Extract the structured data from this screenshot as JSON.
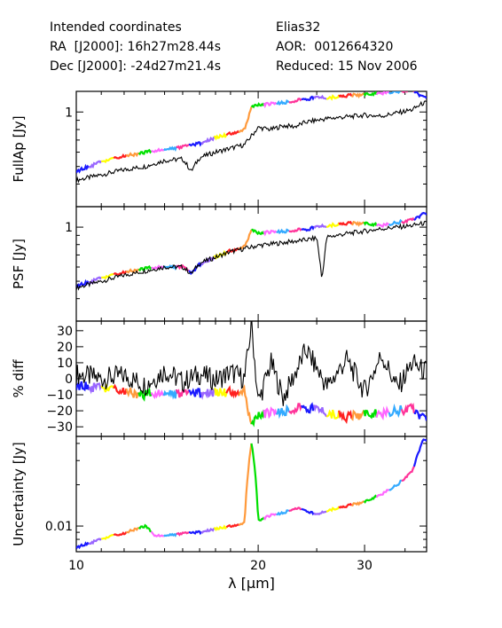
{
  "header": {
    "left": [
      {
        "label": "Intended coordinates",
        "value": ""
      },
      {
        "label": "RA  [J2000]:",
        "value": "16h27m28.44s"
      },
      {
        "label": "Dec [J2000]:",
        "value": "-24d27m21.4s"
      }
    ],
    "right": [
      {
        "label": "Elias32",
        "value": ""
      },
      {
        "label": "AOR:",
        "value": "0012664320"
      },
      {
        "label": "Reduced:",
        "value": "15 Nov 2006"
      }
    ]
  },
  "chart_data": {
    "type": "line",
    "xlabel": "λ [μm]",
    "xscale": "log",
    "xlim": [
      10,
      38
    ],
    "xticks": [
      10,
      20,
      30
    ],
    "segment_colors": [
      "#1a1aff",
      "#9966ff",
      "#ffff00",
      "#ff2020",
      "#ff9a3c",
      "#00e000",
      "#ff66ff",
      "#33aaff",
      "#ff3399"
    ],
    "panels": [
      {
        "ylabel": "FullAp [Jy]",
        "yscale": "log",
        "ylim": [
          0.3,
          1.3
        ],
        "yticks": [
          1
        ],
        "ytick_labels": [
          "1"
        ],
        "series": [
          {
            "role": "colored",
            "x": [
              10,
              11,
              12,
              13,
              14,
              15,
              16,
              17,
              18,
              19,
              19.5,
              20,
              21,
              22,
              23,
              24,
              25,
              26,
              28,
              30,
              32,
              34,
              36,
              37.5
            ],
            "y": [
              0.47,
              0.53,
              0.57,
              0.6,
              0.62,
              0.64,
              0.67,
              0.72,
              0.76,
              0.8,
              1.06,
              1.1,
              1.11,
              1.13,
              1.15,
              1.18,
              1.2,
              1.2,
              1.23,
              1.25,
              1.27,
              1.3,
              1.33,
              1.2
            ]
          },
          {
            "role": "black",
            "x": [
              10,
              11,
              12,
              13,
              14,
              15,
              15.5,
              16,
              17,
              18,
              19,
              20,
              21,
              22,
              23,
              24,
              25,
              26,
              28,
              30,
              32,
              34,
              36,
              37.5
            ],
            "y": [
              0.42,
              0.45,
              0.48,
              0.5,
              0.54,
              0.55,
              0.47,
              0.56,
              0.6,
              0.63,
              0.66,
              0.82,
              0.8,
              0.84,
              0.83,
              0.88,
              0.9,
              0.92,
              0.94,
              0.96,
              0.95,
              0.99,
              1.03,
              1.12
            ]
          }
        ]
      },
      {
        "ylabel": "PSF [Jy]",
        "yscale": "log",
        "ylim": [
          0.3,
          1.3
        ],
        "yticks": [
          1
        ],
        "ytick_labels": [
          "1"
        ],
        "series": [
          {
            "role": "colored",
            "x": [
              10,
              11,
              12,
              13,
              14,
              15,
              15.5,
              16,
              17,
              18,
              19,
              19.5,
              20,
              22,
              24,
              25,
              26,
              28,
              30,
              32,
              34,
              36,
              37.5
            ],
            "y": [
              0.47,
              0.52,
              0.56,
              0.59,
              0.6,
              0.6,
              0.55,
              0.62,
              0.68,
              0.74,
              0.78,
              0.96,
              0.93,
              0.95,
              0.97,
              1.0,
              1.02,
              1.05,
              1.05,
              1.02,
              1.06,
              1.1,
              1.18
            ]
          },
          {
            "role": "black",
            "x": [
              10,
              11,
              12,
              13,
              14,
              15,
              15.5,
              16,
              17,
              18,
              19,
              20,
              22,
              24,
              25,
              25.5,
              26,
              28,
              30,
              32,
              34,
              36,
              37.5
            ],
            "y": [
              0.46,
              0.5,
              0.54,
              0.57,
              0.6,
              0.6,
              0.55,
              0.63,
              0.68,
              0.73,
              0.76,
              0.79,
              0.82,
              0.85,
              0.87,
              0.5,
              0.88,
              0.92,
              0.95,
              0.98,
              1.0,
              1.02,
              1.05
            ]
          }
        ]
      },
      {
        "ylabel": "% diff",
        "yscale": "linear",
        "ylim": [
          -36,
          36
        ],
        "yticks": [
          -30,
          -20,
          -10,
          0,
          10,
          20,
          30
        ],
        "ytick_labels": [
          "−30",
          "−20",
          "−10",
          "0",
          "10",
          "20",
          "30"
        ],
        "series": [
          {
            "role": "colored",
            "x": [
              10,
              11,
              12,
              13,
              14,
              15,
              16,
              17,
              18,
              19,
              19.5,
              20,
              22,
              24,
              26,
              28,
              30,
              32,
              34,
              36,
              37.5
            ],
            "y": [
              -4,
              -6,
              -8,
              -10,
              -9,
              -10,
              -9,
              -9,
              -8,
              -8,
              -30,
              -22,
              -20,
              -18,
              -21,
              -24,
              -22,
              -22,
              -20,
              -18,
              -25
            ]
          },
          {
            "role": "black",
            "x": [
              10,
              11,
              12,
              13,
              14,
              15,
              16,
              17,
              18,
              19,
              19.5,
              20,
              21,
              22,
              24,
              26,
              28,
              30,
              32,
              34,
              36,
              37.5
            ],
            "y": [
              3,
              0,
              2,
              -4,
              5,
              -2,
              3,
              -1,
              4,
              0,
              35,
              -15,
              10,
              -12,
              18,
              -5,
              12,
              -8,
              15,
              -6,
              10,
              5
            ]
          }
        ]
      },
      {
        "ylabel": "Uncertainty [Jy]",
        "yscale": "log",
        "ylim": [
          0.0065,
          0.045
        ],
        "yticks": [
          0.01
        ],
        "ytick_labels": [
          "0.01"
        ],
        "series": [
          {
            "role": "colored",
            "x": [
              10,
              10.5,
              11,
              11.5,
              12,
              12.5,
              13,
              13.5,
              14,
              15,
              16,
              17,
              18,
              19,
              19.5,
              20,
              21,
              22,
              23,
              24,
              25,
              26,
              28,
              30,
              32,
              34,
              36,
              37.5
            ],
            "y": [
              0.007,
              0.0075,
              0.008,
              0.0085,
              0.0088,
              0.0095,
              0.01,
              0.0085,
              0.0085,
              0.0088,
              0.009,
              0.0095,
              0.01,
              0.0105,
              0.04,
              0.011,
              0.012,
              0.0125,
              0.0135,
              0.013,
              0.012,
              0.013,
              0.014,
              0.015,
              0.017,
              0.02,
              0.025,
              0.042
            ]
          }
        ]
      }
    ]
  }
}
